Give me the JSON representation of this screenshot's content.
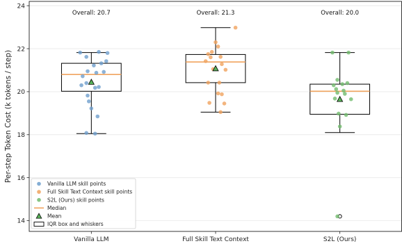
{
  "chart_data": {
    "type": "box",
    "ylabel": "Per-step Token Cost (k tokens / step)",
    "ylim": [
      13.5,
      24.2
    ],
    "yticks": [
      14,
      16,
      18,
      20,
      22,
      24
    ],
    "grid": "horizontal",
    "legend_position": "bottom-left",
    "categories": [
      "Vanilla LLM",
      "Full Skill Text Context",
      "S2L (Ours)"
    ],
    "groups": [
      {
        "name": "Vanilla LLM",
        "overall": "Overall: 20.7",
        "color": "#6f9fcd",
        "mean_color": "#5ab45a",
        "whisker_low": 18.05,
        "q1": 20.02,
        "median": 20.8,
        "q3": 21.32,
        "whisker_high": 21.82,
        "mean": 20.45,
        "outliers": [],
        "points": [
          {
            "dx": -0.09,
            "y": 21.82
          },
          {
            "dx": 0.06,
            "y": 21.85
          },
          {
            "dx": 0.13,
            "y": 21.8
          },
          {
            "dx": -0.04,
            "y": 21.62
          },
          {
            "dx": 0.12,
            "y": 21.42
          },
          {
            "dx": 0.08,
            "y": 21.32
          },
          {
            "dx": 0.02,
            "y": 21.22
          },
          {
            "dx": -0.03,
            "y": 20.95
          },
          {
            "dx": 0.04,
            "y": 20.88
          },
          {
            "dx": 0.1,
            "y": 20.92
          },
          {
            "dx": -0.07,
            "y": 20.72
          },
          {
            "dx": -0.04,
            "y": 20.4
          },
          {
            "dx": 0.06,
            "y": 20.22
          },
          {
            "dx": 0.03,
            "y": 20.18
          },
          {
            "dx": -0.08,
            "y": 20.3
          },
          {
            "dx": -0.03,
            "y": 19.82
          },
          {
            "dx": -0.02,
            "y": 19.55
          },
          {
            "dx": 0.0,
            "y": 19.22
          },
          {
            "dx": 0.05,
            "y": 18.85
          },
          {
            "dx": -0.04,
            "y": 18.08
          },
          {
            "dx": 0.03,
            "y": 18.05
          }
        ]
      },
      {
        "name": "Full Skill Text Context",
        "overall": "Overall: 21.3",
        "color": "#f0a35e",
        "mean_color": "#5ab45a",
        "whisker_low": 19.05,
        "q1": 20.42,
        "median": 21.38,
        "q3": 21.73,
        "whisker_high": 22.98,
        "mean": 21.08,
        "outliers": [],
        "points": [
          {
            "dx": 0.16,
            "y": 22.98
          },
          {
            "dx": 0.0,
            "y": 22.3
          },
          {
            "dx": 0.02,
            "y": 22.1
          },
          {
            "dx": -0.03,
            "y": 21.85
          },
          {
            "dx": -0.06,
            "y": 21.75
          },
          {
            "dx": 0.04,
            "y": 21.62
          },
          {
            "dx": -0.04,
            "y": 21.6
          },
          {
            "dx": -0.08,
            "y": 21.42
          },
          {
            "dx": 0.05,
            "y": 21.28
          },
          {
            "dx": -0.02,
            "y": 21.05
          },
          {
            "dx": 0.08,
            "y": 21.02
          },
          {
            "dx": -0.06,
            "y": 20.42
          },
          {
            "dx": 0.03,
            "y": 20.42
          },
          {
            "dx": 0.02,
            "y": 19.92
          },
          {
            "dx": 0.05,
            "y": 19.88
          },
          {
            "dx": -0.05,
            "y": 19.48
          },
          {
            "dx": 0.07,
            "y": 19.45
          },
          {
            "dx": 0.04,
            "y": 19.05
          }
        ]
      },
      {
        "name": "S2L (Ours)",
        "overall": "Overall: 20.0",
        "color": "#72bb6e",
        "mean_color": "#5ab45a",
        "whisker_low": 18.1,
        "q1": 18.95,
        "median": 20.02,
        "q3": 20.35,
        "whisker_high": 21.82,
        "mean": 19.65,
        "outliers": [
          14.2
        ],
        "points": [
          {
            "dx": -0.06,
            "y": 21.82
          },
          {
            "dx": 0.07,
            "y": 21.82
          },
          {
            "dx": -0.02,
            "y": 20.55
          },
          {
            "dx": 0.06,
            "y": 20.4
          },
          {
            "dx": 0.02,
            "y": 20.35
          },
          {
            "dx": -0.05,
            "y": 20.3
          },
          {
            "dx": -0.03,
            "y": 20.12
          },
          {
            "dx": 0.03,
            "y": 20.05
          },
          {
            "dx": -0.02,
            "y": 19.95
          },
          {
            "dx": 0.04,
            "y": 19.9
          },
          {
            "dx": -0.04,
            "y": 19.68
          },
          {
            "dx": 0.09,
            "y": 19.65
          },
          {
            "dx": -0.01,
            "y": 18.98
          },
          {
            "dx": 0.05,
            "y": 18.92
          },
          {
            "dx": 0.0,
            "y": 18.38
          },
          {
            "dx": -0.02,
            "y": 14.2
          }
        ]
      }
    ],
    "legend": [
      {
        "kind": "point",
        "color": "#6f9fcd",
        "label": "Vanilla LLM skill points"
      },
      {
        "kind": "point",
        "color": "#f0a35e",
        "label": "Full Skill Text Context skill points"
      },
      {
        "kind": "point",
        "color": "#72bb6e",
        "label": "S2L (Ours) skill points"
      },
      {
        "kind": "line",
        "color": "#f0a35e",
        "label": "Median"
      },
      {
        "kind": "triangle",
        "color": "#5ab45a",
        "label": "Mean"
      },
      {
        "kind": "box",
        "color": "#000000",
        "label": "IQR box and whiskers"
      }
    ],
    "colors": {
      "median_line": "#f0a35e",
      "grid": "#e8e8e8",
      "axis": "#222222"
    }
  }
}
